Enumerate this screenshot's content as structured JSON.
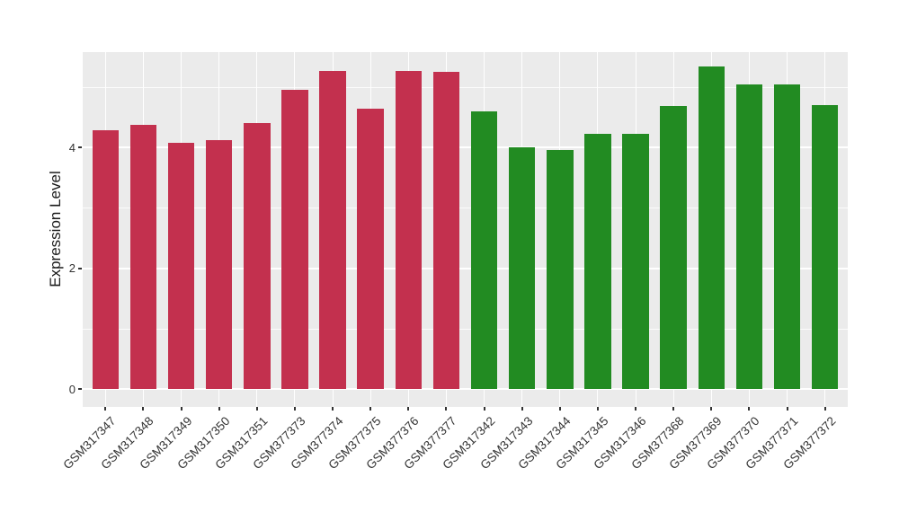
{
  "chart_data": {
    "type": "bar",
    "title": "",
    "xlabel": "",
    "ylabel": "Expression Level",
    "categories": [
      "GSM317347",
      "GSM317348",
      "GSM317349",
      "GSM317350",
      "GSM317351",
      "GSM377373",
      "GSM377374",
      "GSM377375",
      "GSM377376",
      "GSM377377",
      "GSM317342",
      "GSM317343",
      "GSM317344",
      "GSM317345",
      "GSM317346",
      "GSM377368",
      "GSM377369",
      "GSM377370",
      "GSM377371",
      "GSM377372"
    ],
    "values": [
      4.29,
      4.38,
      4.08,
      4.13,
      4.4,
      4.96,
      5.27,
      4.64,
      5.27,
      5.25,
      4.6,
      4.01,
      3.96,
      4.23,
      4.23,
      4.69,
      5.34,
      5.04,
      5.05,
      4.71
    ],
    "bar_colors": [
      "#C3304E",
      "#C3304E",
      "#C3304E",
      "#C3304E",
      "#C3304E",
      "#C3304E",
      "#C3304E",
      "#C3304E",
      "#C3304E",
      "#C3304E",
      "#228B22",
      "#228B22",
      "#228B22",
      "#228B22",
      "#228B22",
      "#228B22",
      "#228B22",
      "#228B22",
      "#228B22",
      "#228B22"
    ],
    "group_colors": {
      "left_group": "#C3304E",
      "right_group": "#228B22"
    },
    "yticks": [
      0,
      2,
      4
    ],
    "yticks_minor": [
      1,
      3,
      5
    ],
    "ylim": [
      -0.29,
      5.58
    ],
    "x_tick_rotation": 45,
    "bar_width_ratio": 0.7,
    "panel_bg": "#EBEBEB",
    "grid_color": "#FFFFFF",
    "axis_text_color": "#333333",
    "legend": "none",
    "grid": "on"
  }
}
